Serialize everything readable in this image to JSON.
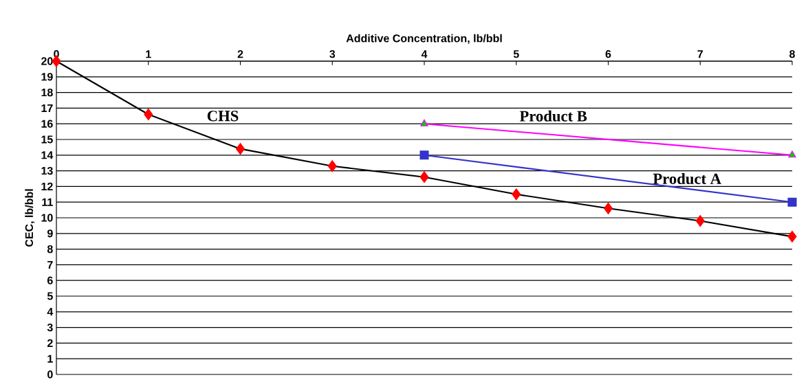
{
  "chart_data": {
    "type": "line",
    "xlabel": "Additive Concentration, lb/bbl",
    "ylabel": "CEC, lb/bbl",
    "xlim": [
      0,
      8
    ],
    "xticks": [
      0,
      1,
      2,
      3,
      4,
      5,
      6,
      7,
      8
    ],
    "ylim": [
      0,
      20
    ],
    "yticks": [
      0,
      1,
      2,
      3,
      4,
      5,
      6,
      7,
      8,
      9,
      10,
      11,
      12,
      13,
      14,
      15,
      16,
      17,
      18,
      19,
      20
    ],
    "grid": "y",
    "series": [
      {
        "name": "CHS",
        "color": "#000000",
        "colors": [
          "#ff0000",
          "#ff0000",
          "#ff0000",
          "#ff0000",
          "#ff0000",
          "#ff0000",
          "#ff0000",
          "#ff0000",
          "#ff0000"
        ],
        "marker": "diamond",
        "x": [
          0,
          1,
          2,
          3,
          4,
          5,
          6,
          7,
          8
        ],
        "values": [
          20,
          16.6,
          14.4,
          13.3,
          12.6,
          11.5,
          10.6,
          9.8,
          8.8
        ]
      },
      {
        "name": "Product A",
        "color": "#3333cc",
        "colors": [
          "#3333cc",
          "#3333cc"
        ],
        "marker": "square",
        "x": [
          4,
          8
        ],
        "values": [
          14,
          11
        ]
      },
      {
        "name": "Product B",
        "color": "#ff00ff",
        "colors": [
          "#00cc00",
          "#00cc00"
        ],
        "marker": "triangle",
        "x": [
          4,
          8
        ],
        "values": [
          16,
          14
        ]
      }
    ]
  }
}
